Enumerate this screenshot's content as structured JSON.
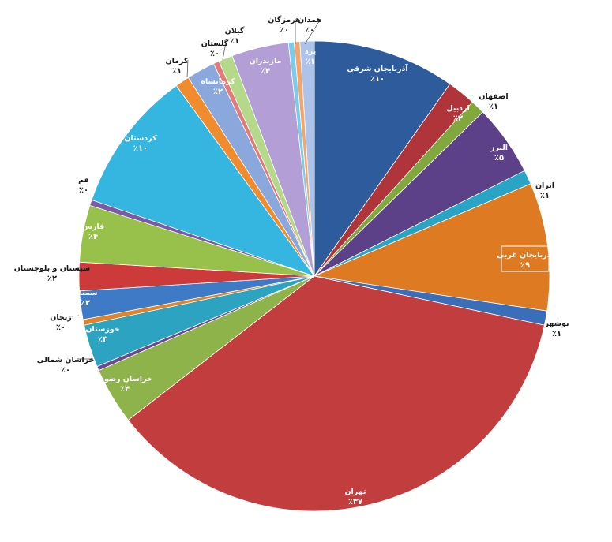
{
  "chart_data": {
    "type": "pie",
    "title": "",
    "slices": [
      {
        "label": "آذربایجان شرقی",
        "value": 10,
        "value_label": "٪۱۰",
        "color": "#2d5b9c"
      },
      {
        "label": "اردبیل",
        "value": 2,
        "value_label": "٪۲",
        "color": "#b0353a"
      },
      {
        "label": "اصفهان",
        "value": 1,
        "value_label": "٪۱",
        "color": "#80a83d"
      },
      {
        "label": "البرز",
        "value": 5,
        "value_label": "٪۵",
        "color": "#5c4088"
      },
      {
        "label": "ایران",
        "value": 1,
        "value_label": "٪۱",
        "color": "#2aa4c4"
      },
      {
        "label": "آذربایجان غربی",
        "value": 9,
        "value_label": "٪۹",
        "color": "#de7b22"
      },
      {
        "label": "بوشهر",
        "value": 1,
        "value_label": "٪۱",
        "color": "#3a6eb8"
      },
      {
        "label": "تهران",
        "value": 37,
        "value_label": "٪۳۷",
        "color": "#c23d3d"
      },
      {
        "label": "خراسان رضوی",
        "value": 4,
        "value_label": "٪۴",
        "color": "#8db34a"
      },
      {
        "label": "خراسان شمالی",
        "value": 0.3,
        "value_label": "٪۰",
        "color": "#6a4a8c"
      },
      {
        "label": "خوزستان",
        "value": 3,
        "value_label": "٪۳",
        "color": "#2ca3c0"
      },
      {
        "label": "زنجان",
        "value": 0.4,
        "value_label": "٪۰",
        "color": "#e0832a"
      },
      {
        "label": "سمنان",
        "value": 2,
        "value_label": "٪۲",
        "color": "#3e7ac6"
      },
      {
        "label": "سیستان و بلوچستان",
        "value": 2,
        "value_label": "٪۲",
        "color": "#cc3a3a"
      },
      {
        "label": "فارس",
        "value": 4,
        "value_label": "٪۴",
        "color": "#97c14a"
      },
      {
        "label": "قم",
        "value": 0.4,
        "value_label": "٪۰",
        "color": "#7a5aa5"
      },
      {
        "label": "کردستان",
        "value": 10,
        "value_label": "٪۱۰",
        "color": "#35b6e0"
      },
      {
        "label": "کرمان",
        "value": 1,
        "value_label": "٪۱",
        "color": "#f08c2d"
      },
      {
        "label": "کرمانشاه",
        "value": 2,
        "value_label": "٪۲",
        "color": "#8aa8dc"
      },
      {
        "label": "گلستان",
        "value": 0.4,
        "value_label": "٪۰",
        "color": "#e37a7a"
      },
      {
        "label": "گیلان",
        "value": 1,
        "value_label": "٪۱",
        "color": "#b5d98a"
      },
      {
        "label": "مازندران",
        "value": 4,
        "value_label": "٪۴",
        "color": "#b39ed6"
      },
      {
        "label": "هرمزگان",
        "value": 0.4,
        "value_label": "٪۰",
        "color": "#7ccbe8"
      },
      {
        "label": "همدان",
        "value": 0.4,
        "value_label": "٪۰",
        "color": "#f5a46b"
      },
      {
        "label": "یزد",
        "value": 1,
        "value_label": "٪۱",
        "color": "#aec3ea"
      }
    ]
  }
}
